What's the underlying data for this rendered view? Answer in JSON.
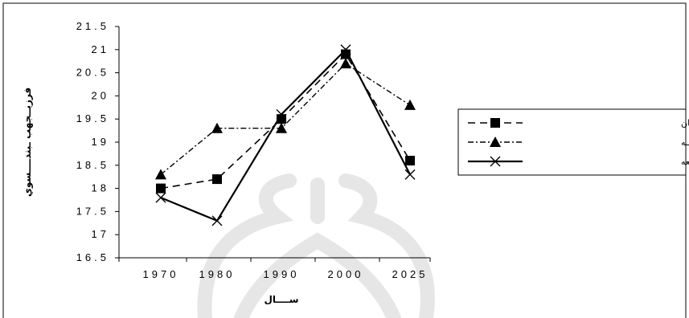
{
  "chart_data": {
    "type": "line",
    "title": "",
    "xlabel": "ســــال",
    "ylabel": "فرزيــجهب ـبندــــسوي",
    "categories": [
      "1970",
      "1980",
      "1990",
      "2000",
      "2025"
    ],
    "y_ticks": [
      "16.5",
      "17",
      "17.5",
      "18",
      "18.5",
      "19",
      "19.5",
      "20",
      "20.5",
      "21",
      "21.5"
    ],
    "ylim": [
      16.5,
      21.5
    ],
    "grid": false,
    "legend_position": "right",
    "series": [
      {
        "name": "جهـــان",
        "marker": "square",
        "dash": "dashed",
        "values": [
          18.0,
          18.2,
          19.5,
          20.9,
          18.6
        ]
      },
      {
        "name": "منـــاطق توســـعه يافتــــه",
        "marker": "triangle",
        "dash": "dashdot",
        "values": [
          18.3,
          19.3,
          19.3,
          20.7,
          19.8
        ]
      },
      {
        "name": "منـــاطق در حـــال توســــعه",
        "marker": "x",
        "dash": "solid",
        "values": [
          17.8,
          17.3,
          19.6,
          21.0,
          18.3
        ]
      }
    ]
  }
}
